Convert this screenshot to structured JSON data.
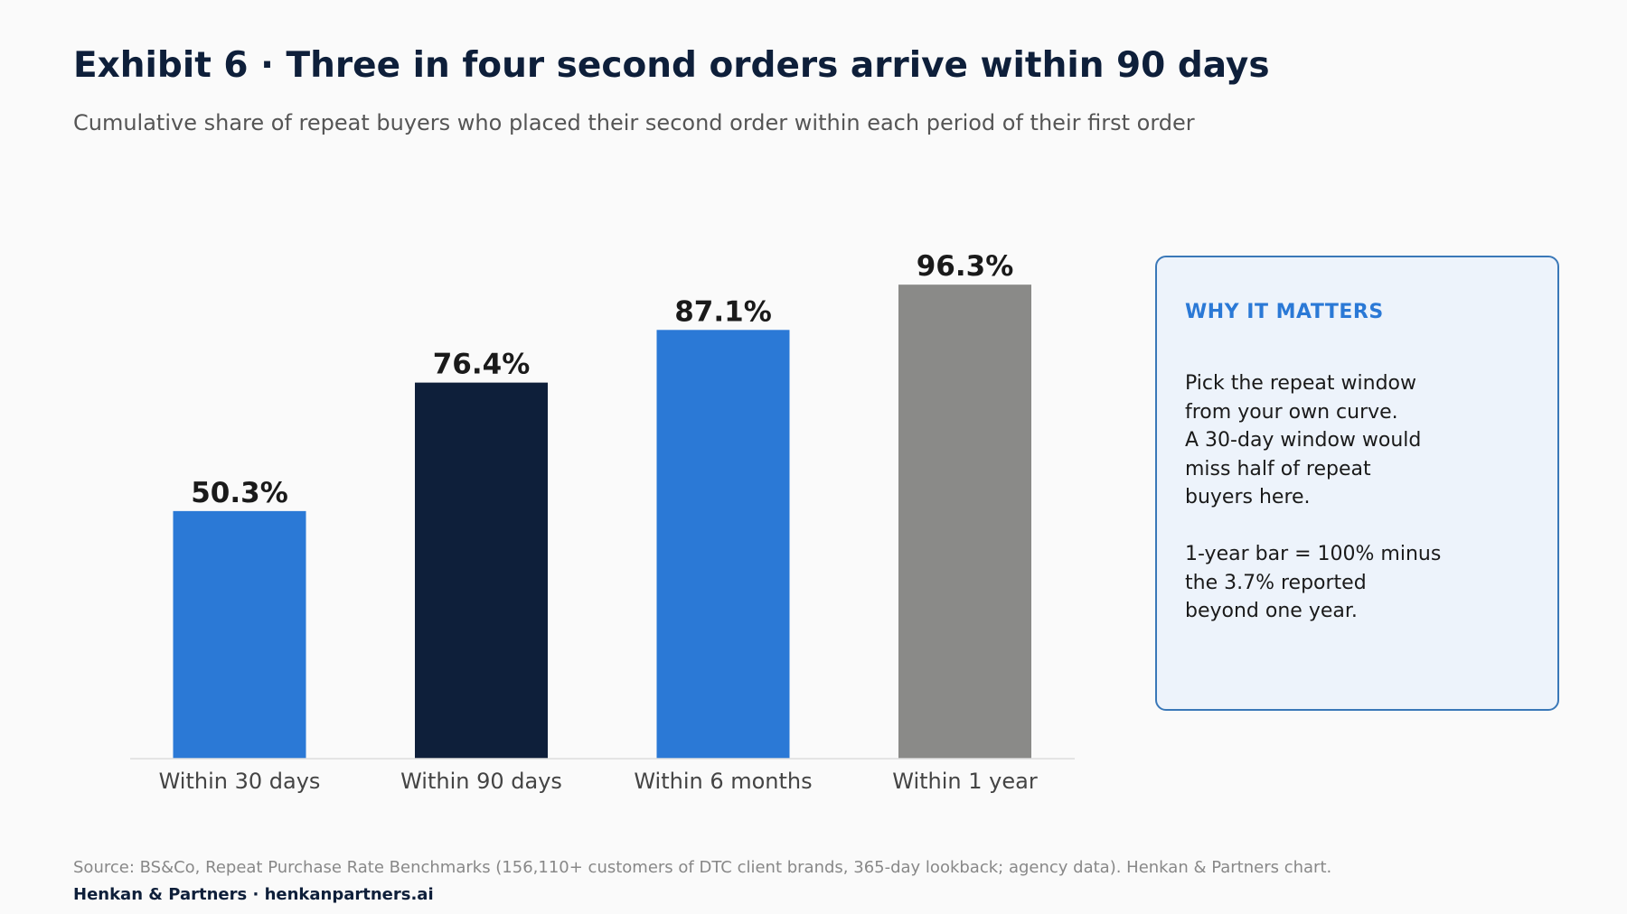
{
  "header": {
    "title": "Exhibit 6 · Three in four second orders arrive within 90 days",
    "subtitle": "Cumulative share of repeat buyers who placed their second order within each period of their first order"
  },
  "chart_data": {
    "type": "bar",
    "categories": [
      "Within 30 days",
      "Within 90 days",
      "Within 6 months",
      "Within 1 year"
    ],
    "values": [
      50.3,
      76.4,
      87.1,
      96.3
    ],
    "value_labels": [
      "50.3%",
      "76.4%",
      "87.1%",
      "96.3%"
    ],
    "bar_colors": [
      "#2b79d6",
      "#0e1f3a",
      "#2b79d6",
      "#8a8a88"
    ],
    "ylim": [
      0,
      100
    ],
    "grid": false,
    "legend": "none",
    "xlabel": "",
    "ylabel": ""
  },
  "callout": {
    "heading": "WHY IT MATTERS",
    "paragraph1": [
      "Pick the repeat window",
      "from your own curve.",
      "A 30-day window would",
      "miss half of repeat",
      "buyers here."
    ],
    "paragraph2": [
      "1-year bar = 100% minus",
      "the 3.7% reported",
      "beyond one year."
    ]
  },
  "footer": {
    "source": "Source: BS&Co, Repeat Purchase Rate Benchmarks (156,110+ customers of DTC client brands, 365-day lookback; agency data). Henkan & Partners chart.",
    "brand": "Henkan & Partners · henkanpartners.ai"
  },
  "colors": {
    "accent": "#2b79d6",
    "navy": "#0e1f3a",
    "gray": "#8a8a88",
    "callout_border": "#3a78b8",
    "callout_bg": "#edf3fb"
  }
}
